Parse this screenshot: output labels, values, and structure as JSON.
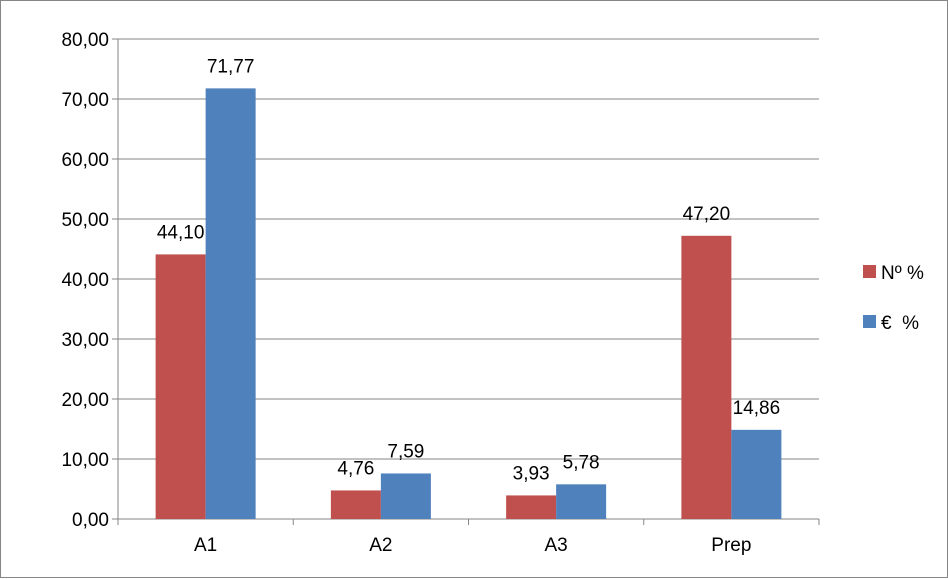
{
  "chart_data": {
    "type": "bar",
    "title": "",
    "xlabel": "",
    "ylabel": "",
    "categories": [
      "A1",
      "A2",
      "A3",
      "Prep"
    ],
    "series": [
      {
        "name": "Nº %",
        "color": "#C0504D",
        "values": [
          44.1,
          4.76,
          3.93,
          47.2
        ],
        "labels": [
          "44,10",
          "4,76",
          "3,93",
          "47,20"
        ]
      },
      {
        "name": "€  %",
        "color": "#4F81BD",
        "values": [
          71.77,
          7.59,
          5.78,
          14.86
        ],
        "labels": [
          "71,77",
          "7,59",
          "5,78",
          "14,86"
        ]
      }
    ],
    "ylim": [
      0,
      80
    ],
    "yticks": [
      0,
      10,
      20,
      30,
      40,
      50,
      60,
      70,
      80
    ],
    "ytick_labels": [
      "0,00",
      "10,00",
      "20,00",
      "30,00",
      "40,00",
      "50,00",
      "60,00",
      "70,00",
      "80,00"
    ],
    "grid": true,
    "legend_position": "right"
  }
}
